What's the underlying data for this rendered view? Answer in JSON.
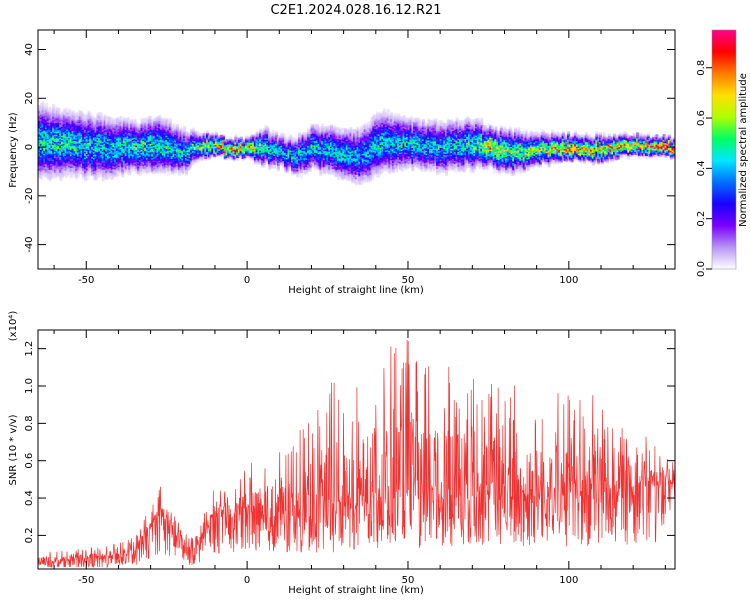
{
  "figure": {
    "title": "C2E1.2024.028.16.12.R21"
  },
  "chart_data": [
    {
      "type": "heatmap",
      "name": "spectrogram",
      "xlabel": "Height of straight line (km)",
      "ylabel": "Frequency (Hz)",
      "xlim": [
        -65,
        133
      ],
      "ylim": [
        -50,
        48
      ],
      "xticks": [
        -50,
        0,
        50,
        100
      ],
      "yticks": [
        -40,
        -20,
        0,
        20,
        40
      ],
      "colorbar": {
        "label": "Normalized spectral amplitude",
        "range": [
          0,
          0.95
        ],
        "ticks": [
          0.0,
          0.2,
          0.4,
          0.6,
          0.8
        ],
        "colormap": [
          "#ffffff",
          "#b894f5",
          "#7a00ff",
          "#1a00ff",
          "#0070ff",
          "#00e8ff",
          "#00ff60",
          "#b0ff00",
          "#ffe000",
          "#ff7a00",
          "#ff0000",
          "#ff0090"
        ]
      },
      "ridge": {
        "x": [
          -65,
          -55,
          -45,
          -35,
          -28,
          -20,
          -15,
          -8,
          0,
          5,
          10,
          15,
          20,
          28,
          35,
          40,
          50,
          60,
          70,
          75,
          80,
          90,
          100,
          110,
          120,
          133
        ],
        "center_hz": [
          2,
          1,
          0,
          0,
          1,
          -2,
          1,
          0,
          -1,
          0,
          -2,
          -4,
          0,
          -2,
          -4,
          2,
          1,
          0,
          1,
          0,
          -2,
          -1,
          0,
          -1,
          1,
          0
        ],
        "spread_hz": [
          12,
          10,
          10,
          8,
          9,
          7,
          4,
          3,
          3,
          6,
          5,
          6,
          7,
          8,
          9,
          10,
          8,
          8,
          8,
          6,
          7,
          5,
          4,
          4,
          3,
          3
        ],
        "peak_amplitude": [
          0.5,
          0.5,
          0.45,
          0.5,
          0.5,
          0.45,
          0.6,
          0.85,
          0.8,
          0.5,
          0.45,
          0.45,
          0.45,
          0.45,
          0.4,
          0.45,
          0.45,
          0.45,
          0.5,
          0.75,
          0.6,
          0.6,
          0.8,
          0.75,
          0.85,
          0.9
        ]
      }
    },
    {
      "type": "line",
      "name": "snr",
      "xlabel": "Height of straight line (km)",
      "ylabel": "SNR (10 * v/v)",
      "yscale_label": "(x10⁴)",
      "xlim": [
        -65,
        133
      ],
      "ylim": [
        0.02,
        1.3
      ],
      "xticks": [
        -50,
        0,
        50,
        100
      ],
      "yticks": [
        0.2,
        0.4,
        0.6,
        0.8,
        1.0,
        1.2
      ],
      "series": [
        {
          "color": "#f03232",
          "x": [
            -65,
            -55,
            -45,
            -35,
            -30,
            -27,
            -22,
            -18,
            -15,
            -12,
            -10,
            -5,
            0,
            5,
            10,
            15,
            20,
            25,
            30,
            35,
            40,
            45,
            50,
            55,
            60,
            65,
            70,
            75,
            80,
            85,
            90,
            95,
            100,
            105,
            110,
            115,
            120,
            125,
            133
          ],
          "mean": [
            0.05,
            0.06,
            0.07,
            0.1,
            0.22,
            0.3,
            0.18,
            0.1,
            0.15,
            0.22,
            0.3,
            0.27,
            0.3,
            0.3,
            0.28,
            0.27,
            0.28,
            0.3,
            0.33,
            0.35,
            0.36,
            0.37,
            0.38,
            0.37,
            0.38,
            0.39,
            0.38,
            0.4,
            0.37,
            0.36,
            0.37,
            0.38,
            0.38,
            0.39,
            0.4,
            0.41,
            0.43,
            0.45,
            0.46
          ],
          "max": [
            0.12,
            0.12,
            0.15,
            0.2,
            0.35,
            0.47,
            0.3,
            0.2,
            0.3,
            0.38,
            0.47,
            0.42,
            0.6,
            0.62,
            0.7,
            0.72,
            0.9,
            1.05,
            1.0,
            1.05,
            1.2,
            1.3,
            1.25,
            1.2,
            1.22,
            1.15,
            1.2,
            1.05,
            1.1,
            1.0,
            1.05,
            1.0,
            1.0,
            0.95,
            1.0,
            0.8,
            0.85,
            0.7,
            0.65
          ]
        }
      ]
    }
  ]
}
